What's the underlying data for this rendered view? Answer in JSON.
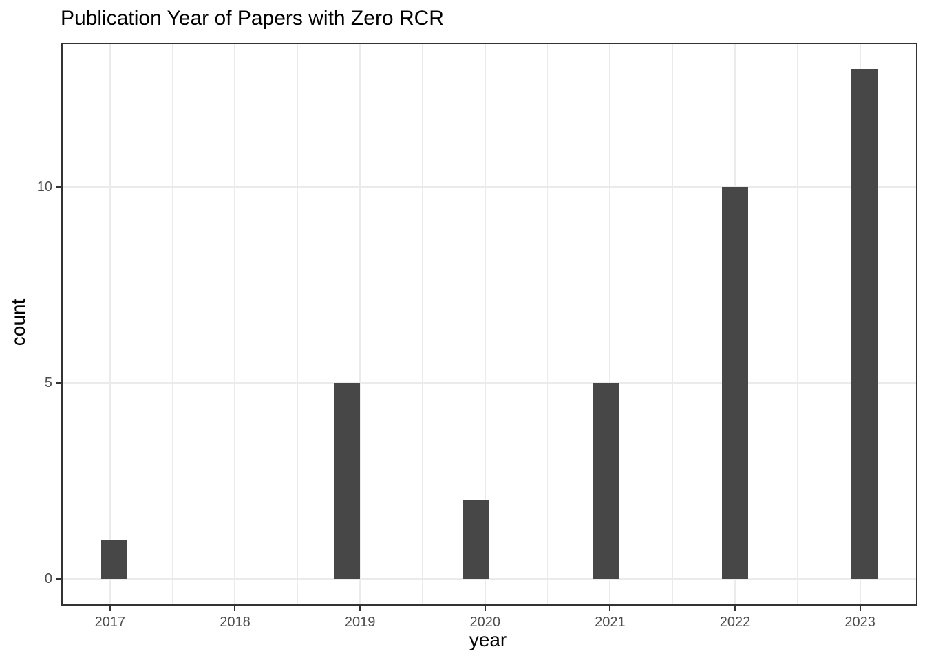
{
  "chart_data": {
    "type": "bar",
    "variant": "histogram",
    "title": "Publication Year of Papers with Zero RCR",
    "xlabel": "year",
    "ylabel": "count",
    "categories": [
      2017,
      2018,
      2019,
      2020,
      2021,
      2022,
      2023
    ],
    "values": [
      1,
      0,
      5,
      2,
      5,
      10,
      13
    ],
    "bars": [
      {
        "year": 2017,
        "count": 1,
        "center": 2017.034
      },
      {
        "year": 2019,
        "count": 5,
        "center": 2018.897
      },
      {
        "year": 2020,
        "count": 2,
        "center": 2019.931
      },
      {
        "year": 2021,
        "count": 5,
        "center": 2020.966
      },
      {
        "year": 2022,
        "count": 10,
        "center": 2022.0
      },
      {
        "year": 2023,
        "count": 13,
        "center": 2023.034
      }
    ],
    "bar_width_years": 0.207,
    "x_tick_labels": [
      "2017",
      "2018",
      "2019",
      "2020",
      "2021",
      "2022",
      "2023"
    ],
    "y_tick_labels": [
      "0",
      "5",
      "10"
    ],
    "y_breaks": [
      0,
      5,
      10
    ],
    "y_minor_breaks": [
      2.5,
      7.5,
      12.5
    ],
    "x_minor_breaks": [
      2017.5,
      2018.5,
      2019.5,
      2020.5,
      2021.5,
      2022.5
    ],
    "xlim": [
      2016.621,
      2023.448
    ],
    "ylim": [
      -0.65,
      13.65
    ],
    "grid": "on",
    "legend": "none",
    "colors": {
      "bar_fill": "#474747",
      "gridline": "#ebebeb",
      "panel_border": "#333333",
      "tick_mark": "#333333",
      "tick_label": "#4d4d4d",
      "axis_title": "#000000",
      "title": "#000000",
      "background": "#ffffff"
    }
  }
}
